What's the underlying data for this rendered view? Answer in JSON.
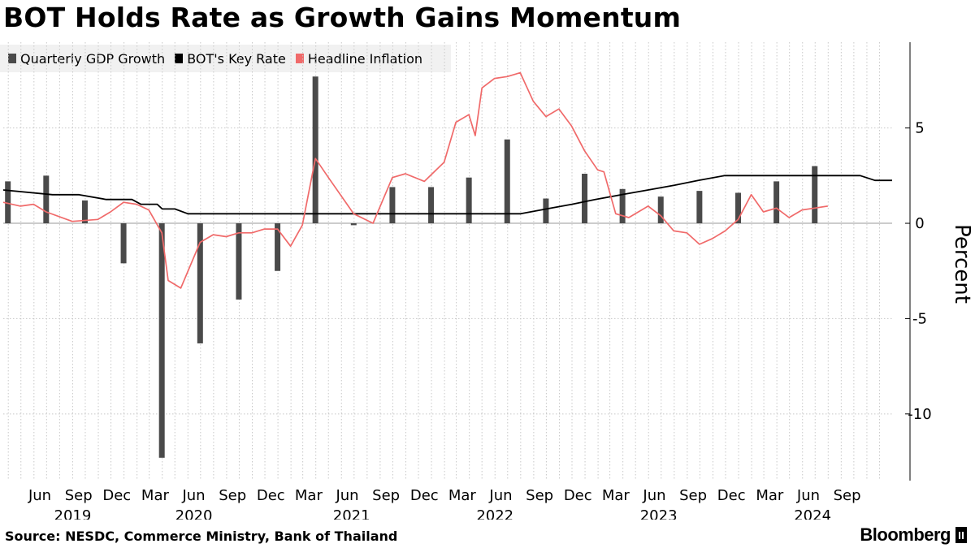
{
  "chart_data": {
    "type": "bar+line",
    "title": "BOT Holds Rate as Growth Gains Momentum",
    "ylabel": "Percent",
    "ylim": [
      -13.5,
      9.5
    ],
    "yticks": [
      5,
      0,
      -5,
      -10
    ],
    "ytick_labels": [
      "5",
      "0",
      "-5",
      "-10"
    ],
    "xlim": [
      "2019-03-20",
      "2024-12-31"
    ],
    "x_month_ticks": [
      {
        "label": "Jun",
        "date": "2019-06-15"
      },
      {
        "label": "Sep",
        "date": "2019-09-15"
      },
      {
        "label": "Dec",
        "date": "2019-12-15"
      },
      {
        "label": "Mar",
        "date": "2020-03-15"
      },
      {
        "label": "Jun",
        "date": "2020-06-15"
      },
      {
        "label": "Sep",
        "date": "2020-09-15"
      },
      {
        "label": "Dec",
        "date": "2020-12-15"
      },
      {
        "label": "Mar",
        "date": "2021-03-15"
      },
      {
        "label": "Jun",
        "date": "2021-06-15"
      },
      {
        "label": "Sep",
        "date": "2021-09-15"
      },
      {
        "label": "Dec",
        "date": "2021-12-15"
      },
      {
        "label": "Mar",
        "date": "2022-03-15"
      },
      {
        "label": "Jun",
        "date": "2022-06-15"
      },
      {
        "label": "Sep",
        "date": "2022-09-15"
      },
      {
        "label": "Dec",
        "date": "2022-12-15"
      },
      {
        "label": "Mar",
        "date": "2023-03-15"
      },
      {
        "label": "Jun",
        "date": "2023-06-15"
      },
      {
        "label": "Sep",
        "date": "2023-09-15"
      },
      {
        "label": "Dec",
        "date": "2023-12-15"
      },
      {
        "label": "Mar",
        "date": "2024-03-15"
      },
      {
        "label": "Jun",
        "date": "2024-06-15"
      },
      {
        "label": "Sep",
        "date": "2024-09-15"
      }
    ],
    "x_year_ticks": [
      {
        "label": "2019",
        "date": "2019-09-01"
      },
      {
        "label": "2020",
        "date": "2020-06-15"
      },
      {
        "label": "2021",
        "date": "2021-06-25"
      },
      {
        "label": "2022",
        "date": "2022-06-01"
      },
      {
        "label": "2023",
        "date": "2023-06-25"
      },
      {
        "label": "2024",
        "date": "2024-06-25"
      }
    ],
    "series": [
      {
        "name": "Quarterly GDP Growth",
        "kind": "bar",
        "color": "#4a4a4a",
        "points": [
          {
            "date": "2019-03-31",
            "value": 2.2
          },
          {
            "date": "2019-06-30",
            "value": 2.5
          },
          {
            "date": "2019-09-30",
            "value": 1.2
          },
          {
            "date": "2019-12-31",
            "value": -2.1
          },
          {
            "date": "2020-03-31",
            "value": -12.3
          },
          {
            "date": "2020-06-30",
            "value": -6.3
          },
          {
            "date": "2020-09-30",
            "value": -4.0
          },
          {
            "date": "2020-12-31",
            "value": -2.5
          },
          {
            "date": "2021-03-31",
            "value": 7.7
          },
          {
            "date": "2021-06-30",
            "value": -0.1
          },
          {
            "date": "2021-09-30",
            "value": 1.9
          },
          {
            "date": "2021-12-31",
            "value": 1.9
          },
          {
            "date": "2022-03-31",
            "value": 2.4
          },
          {
            "date": "2022-06-30",
            "value": 4.4
          },
          {
            "date": "2022-09-30",
            "value": 1.3
          },
          {
            "date": "2022-12-31",
            "value": 2.6
          },
          {
            "date": "2023-03-31",
            "value": 1.8
          },
          {
            "date": "2023-06-30",
            "value": 1.4
          },
          {
            "date": "2023-09-30",
            "value": 1.7
          },
          {
            "date": "2023-12-31",
            "value": 1.6
          },
          {
            "date": "2024-03-31",
            "value": 2.2
          },
          {
            "date": "2024-06-30",
            "value": 3.0
          }
        ]
      },
      {
        "name": "BOT's Key Rate",
        "kind": "line",
        "color": "#000000",
        "points": [
          {
            "date": "2019-03-20",
            "value": 1.75
          },
          {
            "date": "2019-07-15",
            "value": 1.5
          },
          {
            "date": "2019-09-15",
            "value": 1.5
          },
          {
            "date": "2019-11-20",
            "value": 1.25
          },
          {
            "date": "2020-01-20",
            "value": 1.25
          },
          {
            "date": "2020-02-10",
            "value": 1.0
          },
          {
            "date": "2020-03-20",
            "value": 1.0
          },
          {
            "date": "2020-04-01",
            "value": 0.75
          },
          {
            "date": "2020-05-01",
            "value": 0.75
          },
          {
            "date": "2020-06-01",
            "value": 0.5
          },
          {
            "date": "2022-08-01",
            "value": 0.5
          },
          {
            "date": "2022-10-01",
            "value": 0.75
          },
          {
            "date": "2022-12-01",
            "value": 1.0
          },
          {
            "date": "2023-01-25",
            "value": 1.25
          },
          {
            "date": "2023-03-29",
            "value": 1.5
          },
          {
            "date": "2023-05-31",
            "value": 1.75
          },
          {
            "date": "2023-08-02",
            "value": 2.0
          },
          {
            "date": "2023-09-27",
            "value": 2.25
          },
          {
            "date": "2023-11-29",
            "value": 2.5
          },
          {
            "date": "2024-10-16",
            "value": 2.5
          },
          {
            "date": "2024-11-20",
            "value": 2.25
          },
          {
            "date": "2024-12-31",
            "value": 2.25
          }
        ]
      },
      {
        "name": "Headline Inflation",
        "kind": "line",
        "color": "#f06a6a",
        "points": [
          {
            "date": "2019-03-20",
            "value": 1.1
          },
          {
            "date": "2019-04-30",
            "value": 0.9
          },
          {
            "date": "2019-05-31",
            "value": 1.0
          },
          {
            "date": "2019-06-30",
            "value": 0.6
          },
          {
            "date": "2019-08-31",
            "value": 0.1
          },
          {
            "date": "2019-10-31",
            "value": 0.2
          },
          {
            "date": "2019-11-30",
            "value": 0.6
          },
          {
            "date": "2019-12-31",
            "value": 1.1
          },
          {
            "date": "2020-01-31",
            "value": 1.0
          },
          {
            "date": "2020-02-29",
            "value": 0.7
          },
          {
            "date": "2020-03-31",
            "value": -0.5
          },
          {
            "date": "2020-04-15",
            "value": -3.0
          },
          {
            "date": "2020-05-15",
            "value": -3.4
          },
          {
            "date": "2020-06-30",
            "value": -1.0
          },
          {
            "date": "2020-07-31",
            "value": -0.6
          },
          {
            "date": "2020-08-31",
            "value": -0.7
          },
          {
            "date": "2020-09-30",
            "value": -0.5
          },
          {
            "date": "2020-10-31",
            "value": -0.5
          },
          {
            "date": "2020-11-30",
            "value": -0.3
          },
          {
            "date": "2020-12-31",
            "value": -0.3
          },
          {
            "date": "2021-01-31",
            "value": -1.2
          },
          {
            "date": "2021-02-28",
            "value": -0.1
          },
          {
            "date": "2021-03-31",
            "value": 3.4
          },
          {
            "date": "2021-05-01",
            "value": 2.4
          },
          {
            "date": "2021-06-30",
            "value": 0.5
          },
          {
            "date": "2021-08-15",
            "value": 0.0
          },
          {
            "date": "2021-09-30",
            "value": 2.4
          },
          {
            "date": "2021-10-31",
            "value": 2.6
          },
          {
            "date": "2021-12-15",
            "value": 2.2
          },
          {
            "date": "2022-01-31",
            "value": 3.2
          },
          {
            "date": "2022-02-28",
            "value": 5.3
          },
          {
            "date": "2022-03-31",
            "value": 5.7
          },
          {
            "date": "2022-04-15",
            "value": 4.6
          },
          {
            "date": "2022-05-01",
            "value": 7.1
          },
          {
            "date": "2022-05-31",
            "value": 7.6
          },
          {
            "date": "2022-06-30",
            "value": 7.7
          },
          {
            "date": "2022-07-31",
            "value": 7.9
          },
          {
            "date": "2022-08-31",
            "value": 6.4
          },
          {
            "date": "2022-09-30",
            "value": 5.6
          },
          {
            "date": "2022-10-31",
            "value": 6.0
          },
          {
            "date": "2022-11-30",
            "value": 5.1
          },
          {
            "date": "2022-12-31",
            "value": 3.8
          },
          {
            "date": "2023-01-31",
            "value": 2.8
          },
          {
            "date": "2023-02-15",
            "value": 2.7
          },
          {
            "date": "2023-03-15",
            "value": 0.5
          },
          {
            "date": "2023-04-15",
            "value": 0.3
          },
          {
            "date": "2023-05-31",
            "value": 0.9
          },
          {
            "date": "2023-06-30",
            "value": 0.4
          },
          {
            "date": "2023-07-31",
            "value": -0.4
          },
          {
            "date": "2023-08-31",
            "value": -0.5
          },
          {
            "date": "2023-09-30",
            "value": -1.1
          },
          {
            "date": "2023-10-31",
            "value": -0.8
          },
          {
            "date": "2023-11-30",
            "value": -0.4
          },
          {
            "date": "2023-12-31",
            "value": 0.2
          },
          {
            "date": "2024-01-31",
            "value": 1.5
          },
          {
            "date": "2024-02-29",
            "value": 0.6
          },
          {
            "date": "2024-03-31",
            "value": 0.8
          },
          {
            "date": "2024-04-30",
            "value": 0.3
          },
          {
            "date": "2024-05-31",
            "value": 0.7
          },
          {
            "date": "2024-06-30",
            "value": 0.8
          },
          {
            "date": "2024-07-31",
            "value": 0.9
          }
        ]
      }
    ]
  },
  "legend": {
    "items": [
      {
        "label": "Quarterly GDP Growth",
        "color": "#4a4a4a"
      },
      {
        "label": "BOT's Key Rate",
        "color": "#000000"
      },
      {
        "label": "Headline Inflation",
        "color": "#f06a6a"
      }
    ]
  },
  "footer": {
    "source": "Source: NESDC, Commerce Ministry, Bank of Thailand",
    "brand": "Bloomberg"
  },
  "colors": {
    "grid": "#c8c8c8",
    "zero": "#9a9a9a",
    "legend_bg": "#f1f1f1"
  }
}
